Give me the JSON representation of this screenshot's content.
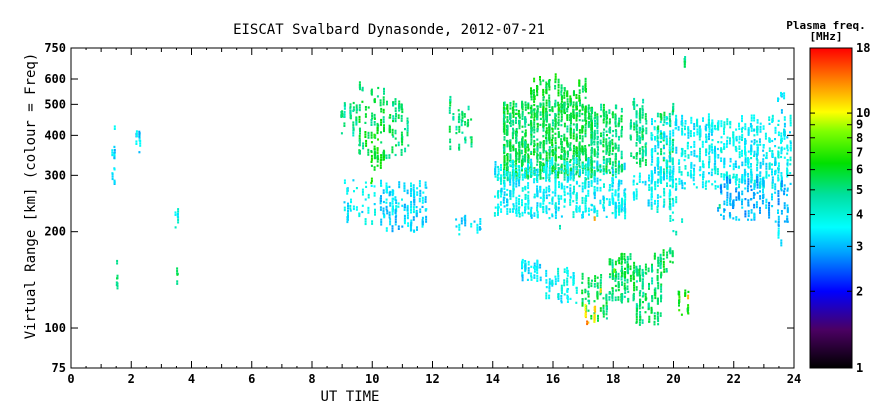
{
  "chart_data": {
    "type": "scatter",
    "title": "EISCAT Svalbard Dynasonde, 2012-07-21",
    "xlabel": "UT TIME",
    "ylabel": "Virtual Range [km] (colour = Freq)",
    "x_ticks": [
      0,
      2,
      4,
      6,
      8,
      10,
      12,
      14,
      16,
      18,
      20,
      22,
      24
    ],
    "y_ticks": [
      75,
      100,
      200,
      300,
      400,
      500,
      600,
      750
    ],
    "xlim": [
      0,
      24
    ],
    "ylim": [
      75,
      750
    ],
    "y_scale": "log",
    "grid": false,
    "colorbar": {
      "title_line1": "Plasma freq.",
      "title_line2": "[MHz]",
      "ticks": [
        1,
        2,
        3,
        4,
        5,
        6,
        7,
        8,
        9,
        10,
        18
      ],
      "range": [
        1,
        18
      ],
      "scale": "log"
    },
    "clusters": [
      {
        "name": "c01",
        "x": [
          1.3,
          1.45
        ],
        "y": [
          280,
          430
        ],
        "f": 3.3,
        "n": 14
      },
      {
        "name": "c02",
        "x": [
          1.45,
          1.55
        ],
        "y": [
          130,
          160
        ],
        "f": 5.2,
        "n": 5
      },
      {
        "name": "c03",
        "x": [
          2.1,
          2.3
        ],
        "y": [
          350,
          410
        ],
        "f": 3.3,
        "n": 8
      },
      {
        "name": "c04",
        "x": [
          3.4,
          3.55
        ],
        "y": [
          200,
          240
        ],
        "f": 3.8,
        "n": 6
      },
      {
        "name": "c05",
        "x": [
          3.45,
          3.55
        ],
        "y": [
          135,
          150
        ],
        "f": 5.3,
        "n": 4
      },
      {
        "name": "c06",
        "x": [
          8.9,
          9.5
        ],
        "y": [
          400,
          510
        ],
        "f": 4.9,
        "n": 30
      },
      {
        "name": "c07",
        "x": [
          9.5,
          10.4
        ],
        "y": [
          330,
          570
        ],
        "f": 5.6,
        "n": 70
      },
      {
        "name": "c08",
        "x": [
          10.4,
          11.2
        ],
        "y": [
          340,
          510
        ],
        "f": 5.2,
        "n": 45
      },
      {
        "name": "c09",
        "x": [
          9.9,
          10.4
        ],
        "y": [
          280,
          400
        ],
        "f": 6.5,
        "n": 20
      },
      {
        "name": "c10",
        "x": [
          9.0,
          10.2
        ],
        "y": [
          210,
          290
        ],
        "f": 3.5,
        "n": 35
      },
      {
        "name": "c11",
        "x": [
          10.2,
          11.8
        ],
        "y": [
          200,
          280
        ],
        "f": 3.3,
        "n": 110
      },
      {
        "name": "c12",
        "x": [
          12.5,
          13.3
        ],
        "y": [
          360,
          520
        ],
        "f": 5.1,
        "n": 35
      },
      {
        "name": "c13",
        "x": [
          12.6,
          13.6
        ],
        "y": [
          190,
          220
        ],
        "f": 3.4,
        "n": 15
      },
      {
        "name": "c14",
        "x": [
          14.3,
          17.3
        ],
        "y": [
          290,
          500
        ],
        "f": 5.5,
        "n": 700
      },
      {
        "name": "c15",
        "x": [
          15.2,
          17.2
        ],
        "y": [
          470,
          600
        ],
        "f": 5.9,
        "n": 80
      },
      {
        "name": "c16",
        "x": [
          14.0,
          18.4
        ],
        "y": [
          220,
          330
        ],
        "f": 3.6,
        "n": 420
      },
      {
        "name": "c17",
        "x": [
          17.2,
          18.3
        ],
        "y": [
          300,
          490
        ],
        "f": 5.3,
        "n": 160
      },
      {
        "name": "c18",
        "x": [
          18.5,
          19.1
        ],
        "y": [
          320,
          510
        ],
        "f": 5.0,
        "n": 70
      },
      {
        "name": "c19",
        "x": [
          19.4,
          20.0
        ],
        "y": [
          300,
          490
        ],
        "f": 5.1,
        "n": 50
      },
      {
        "name": "c20",
        "x": [
          18.6,
          20.0
        ],
        "y": [
          230,
          300
        ],
        "f": 3.6,
        "n": 50
      },
      {
        "name": "c21",
        "x": [
          19.2,
          23.9
        ],
        "y": [
          270,
          450
        ],
        "f": 3.6,
        "n": 520
      },
      {
        "name": "c22",
        "x": [
          21.4,
          23.8
        ],
        "y": [
          215,
          290
        ],
        "f": 3.0,
        "n": 110
      },
      {
        "name": "c23",
        "x": [
          23.4,
          23.7
        ],
        "y": [
          470,
          540
        ],
        "f": 3.2,
        "n": 6
      },
      {
        "name": "c24",
        "x": [
          23.4,
          23.6
        ],
        "y": [
          170,
          220
        ],
        "f": 3.2,
        "n": 5
      },
      {
        "name": "c25",
        "x": [
          20.3,
          20.4
        ],
        "y": [
          650,
          690
        ],
        "f": 5.0,
        "n": 4
      },
      {
        "name": "c26",
        "x": [
          19.8,
          20.3
        ],
        "y": [
          195,
          255
        ],
        "f": 4.3,
        "n": 12
      },
      {
        "name": "c27",
        "x": [
          14.9,
          15.6
        ],
        "y": [
          140,
          162
        ],
        "f": 3.4,
        "n": 30
      },
      {
        "name": "c28",
        "x": [
          15.7,
          16.8
        ],
        "y": [
          120,
          150
        ],
        "f": 3.7,
        "n": 45
      },
      {
        "name": "c29",
        "x": [
          16.9,
          17.8
        ],
        "y": [
          103,
          145
        ],
        "f": 5.4,
        "n": 50
      },
      {
        "name": "c30",
        "x": [
          17.8,
          18.7
        ],
        "y": [
          120,
          165
        ],
        "f": 5.4,
        "n": 90
      },
      {
        "name": "c31",
        "x": [
          18.7,
          19.6
        ],
        "y": [
          102,
          160
        ],
        "f": 5.2,
        "n": 90
      },
      {
        "name": "c32",
        "x": [
          19.2,
          20.0
        ],
        "y": [
          150,
          175
        ],
        "f": 5.5,
        "n": 20
      },
      {
        "name": "c33",
        "x": [
          17.0,
          17.4
        ],
        "y": [
          102,
          115
        ],
        "f": 10.5,
        "n": 10
      },
      {
        "name": "c34",
        "x": [
          20.1,
          20.5
        ],
        "y": [
          110,
          130
        ],
        "f": 6.5,
        "n": 15
      }
    ],
    "outliers": [
      {
        "x": 17.35,
        "y": 218,
        "f": 12.5
      },
      {
        "x": 20.45,
        "y": 124,
        "f": 12.0
      },
      {
        "x": 17.55,
        "y": 130,
        "f": 11.0
      },
      {
        "x": 17.1,
        "y": 103,
        "f": 14.0
      },
      {
        "x": 18.0,
        "y": 150,
        "f": 8.5
      },
      {
        "x": 21.5,
        "y": 238,
        "f": 5.0
      },
      {
        "x": 16.2,
        "y": 205,
        "f": 4.5
      }
    ]
  }
}
